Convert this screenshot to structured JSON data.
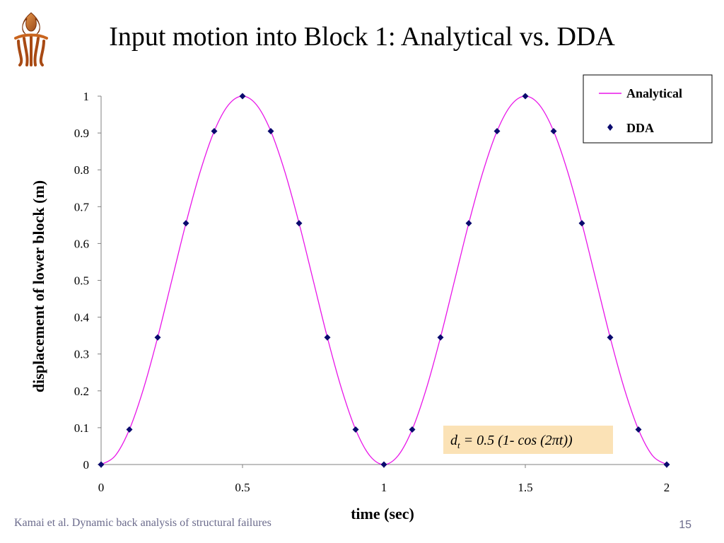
{
  "slide": {
    "title": "Input motion into Block 1: Analytical vs. DDA",
    "footer": "Kamai et al. Dynamic back analysis of structural failures",
    "page_number": "15",
    "logo_icon": "university-logo-icon"
  },
  "formula": {
    "lhs": "d",
    "subscript": "t",
    "rhs": " = 0.5 (1- cos (2πt))",
    "background": "#fbe2b6"
  },
  "chart_data": {
    "type": "line",
    "title": "",
    "xlabel": "time (sec)",
    "ylabel": "displacement of lower block (m)",
    "xlim": [
      0,
      2
    ],
    "ylim": [
      0,
      1
    ],
    "x_ticks": [
      "0",
      "0.5",
      "1",
      "1.5",
      "2"
    ],
    "y_ticks": [
      "0",
      "0.1",
      "0.2",
      "0.3",
      "0.4",
      "0.5",
      "0.6",
      "0.7",
      "0.8",
      "0.9",
      "1"
    ],
    "legend_position": "top-right",
    "series": [
      {
        "name": "Analytical",
        "style": "line",
        "color": "#e815e8",
        "x": [
          0,
          0.05,
          0.1,
          0.15,
          0.2,
          0.25,
          0.3,
          0.35,
          0.4,
          0.45,
          0.5,
          0.55,
          0.6,
          0.65,
          0.7,
          0.75,
          0.8,
          0.85,
          0.9,
          0.95,
          1,
          1.05,
          1.1,
          1.15,
          1.2,
          1.25,
          1.3,
          1.35,
          1.4,
          1.45,
          1.5,
          1.55,
          1.6,
          1.65,
          1.7,
          1.75,
          1.8,
          1.85,
          1.9,
          1.95,
          2
        ],
        "y": [
          0,
          0.024,
          0.095,
          0.206,
          0.345,
          0.5,
          0.655,
          0.794,
          0.905,
          0.976,
          1,
          0.976,
          0.905,
          0.794,
          0.655,
          0.5,
          0.345,
          0.206,
          0.095,
          0.024,
          0,
          0.024,
          0.095,
          0.206,
          0.345,
          0.5,
          0.655,
          0.794,
          0.905,
          0.976,
          1,
          0.976,
          0.905,
          0.794,
          0.655,
          0.5,
          0.345,
          0.206,
          0.095,
          0.024,
          0
        ]
      },
      {
        "name": "DDA",
        "style": "marker",
        "color": "#0a0a6e",
        "x": [
          0,
          0.1,
          0.2,
          0.3,
          0.4,
          0.5,
          0.6,
          0.7,
          0.8,
          0.9,
          1,
          1.1,
          1.2,
          1.3,
          1.4,
          1.5,
          1.6,
          1.7,
          1.8,
          1.9,
          2
        ],
        "y": [
          0,
          0.095,
          0.345,
          0.655,
          0.905,
          1,
          0.905,
          0.655,
          0.345,
          0.095,
          0,
          0.095,
          0.345,
          0.655,
          0.905,
          1,
          0.905,
          0.655,
          0.345,
          0.095,
          0
        ]
      }
    ]
  }
}
